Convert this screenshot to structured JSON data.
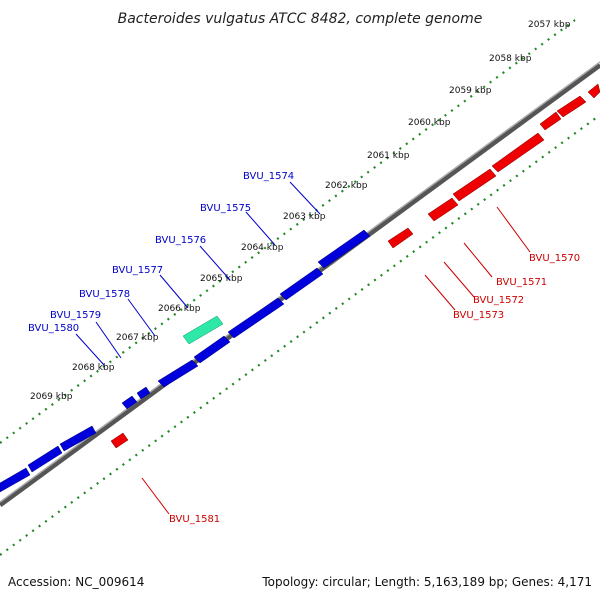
{
  "title": "Bacteroides vulgatus ATCC 8482, complete genome",
  "footer": {
    "accession": "Accession: NC_009614",
    "summary": "Topology: circular; Length: 5,163,189 bp; Genes: 4,171"
  },
  "colors": {
    "forward": "#0000dd",
    "reverse": "#ee0000",
    "rna": "#2ee8a8",
    "backbone": "#777777",
    "ticks": "#228822"
  },
  "scale_ticks": [
    "2057 kbp",
    "2058 kbp",
    "2059 kbp",
    "2060 kbp",
    "2061 kbp",
    "2062 kbp",
    "2063 kbp",
    "2064 kbp",
    "2065 kbp",
    "2066 kbp",
    "2067 kbp",
    "2068 kbp",
    "2069 kbp"
  ],
  "gene_labels_forward": [
    "BVU_1574",
    "BVU_1575",
    "BVU_1576",
    "BVU_1577",
    "BVU_1578",
    "BVU_1579",
    "BVU_1580"
  ],
  "gene_labels_reverse": [
    "BVU_1570",
    "BVU_1571",
    "BVU_1572",
    "BVU_1573",
    "BVU_1581"
  ]
}
